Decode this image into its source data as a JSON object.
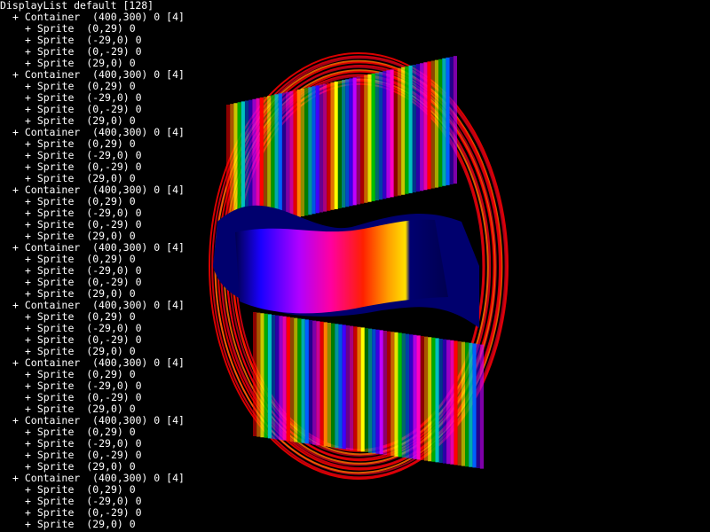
{
  "display_list": {
    "header": "DisplayList default [128]",
    "entries": [
      {
        "kind": "Container",
        "pos": "(400,300)",
        "rot": "0",
        "count": "[4]",
        "children": [
          {
            "kind": "Sprite",
            "pos": "(0,29)",
            "rot": "0"
          },
          {
            "kind": "Sprite",
            "pos": "(-29,0)",
            "rot": "0"
          },
          {
            "kind": "Sprite",
            "pos": "(0,-29)",
            "rot": "0"
          },
          {
            "kind": "Sprite",
            "pos": "(29,0)",
            "rot": "0"
          }
        ]
      },
      {
        "kind": "Container",
        "pos": "(400,300)",
        "rot": "0",
        "count": "[4]",
        "children": [
          {
            "kind": "Sprite",
            "pos": "(0,29)",
            "rot": "0"
          },
          {
            "kind": "Sprite",
            "pos": "(-29,0)",
            "rot": "0"
          },
          {
            "kind": "Sprite",
            "pos": "(0,-29)",
            "rot": "0"
          },
          {
            "kind": "Sprite",
            "pos": "(29,0)",
            "rot": "0"
          }
        ]
      },
      {
        "kind": "Container",
        "pos": "(400,300)",
        "rot": "0",
        "count": "[4]",
        "children": [
          {
            "kind": "Sprite",
            "pos": "(0,29)",
            "rot": "0"
          },
          {
            "kind": "Sprite",
            "pos": "(-29,0)",
            "rot": "0"
          },
          {
            "kind": "Sprite",
            "pos": "(0,-29)",
            "rot": "0"
          },
          {
            "kind": "Sprite",
            "pos": "(29,0)",
            "rot": "0"
          }
        ]
      },
      {
        "kind": "Container",
        "pos": "(400,300)",
        "rot": "0",
        "count": "[4]",
        "children": [
          {
            "kind": "Sprite",
            "pos": "(0,29)",
            "rot": "0"
          },
          {
            "kind": "Sprite",
            "pos": "(-29,0)",
            "rot": "0"
          },
          {
            "kind": "Sprite",
            "pos": "(0,-29)",
            "rot": "0"
          },
          {
            "kind": "Sprite",
            "pos": "(29,0)",
            "rot": "0"
          }
        ]
      },
      {
        "kind": "Container",
        "pos": "(400,300)",
        "rot": "0",
        "count": "[4]",
        "children": [
          {
            "kind": "Sprite",
            "pos": "(0,29)",
            "rot": "0"
          },
          {
            "kind": "Sprite",
            "pos": "(-29,0)",
            "rot": "0"
          },
          {
            "kind": "Sprite",
            "pos": "(0,-29)",
            "rot": "0"
          },
          {
            "kind": "Sprite",
            "pos": "(29,0)",
            "rot": "0"
          }
        ]
      },
      {
        "kind": "Container",
        "pos": "(400,300)",
        "rot": "0",
        "count": "[4]",
        "children": [
          {
            "kind": "Sprite",
            "pos": "(0,29)",
            "rot": "0"
          },
          {
            "kind": "Sprite",
            "pos": "(-29,0)",
            "rot": "0"
          },
          {
            "kind": "Sprite",
            "pos": "(0,-29)",
            "rot": "0"
          },
          {
            "kind": "Sprite",
            "pos": "(29,0)",
            "rot": "0"
          }
        ]
      },
      {
        "kind": "Container",
        "pos": "(400,300)",
        "rot": "0",
        "count": "[4]",
        "children": [
          {
            "kind": "Sprite",
            "pos": "(0,29)",
            "rot": "0"
          },
          {
            "kind": "Sprite",
            "pos": "(-29,0)",
            "rot": "0"
          },
          {
            "kind": "Sprite",
            "pos": "(0,-29)",
            "rot": "0"
          },
          {
            "kind": "Sprite",
            "pos": "(29,0)",
            "rot": "0"
          }
        ]
      },
      {
        "kind": "Container",
        "pos": "(400,300)",
        "rot": "0",
        "count": "[4]",
        "children": [
          {
            "kind": "Sprite",
            "pos": "(0,29)",
            "rot": "0"
          },
          {
            "kind": "Sprite",
            "pos": "(-29,0)",
            "rot": "0"
          },
          {
            "kind": "Sprite",
            "pos": "(0,-29)",
            "rot": "0"
          },
          {
            "kind": "Sprite",
            "pos": "(29,0)",
            "rot": "0"
          }
        ]
      },
      {
        "kind": "Container",
        "pos": "(400,300)",
        "rot": "0",
        "count": "[4]",
        "children": [
          {
            "kind": "Sprite",
            "pos": "(0,29)",
            "rot": "0"
          },
          {
            "kind": "Sprite",
            "pos": "(-29,0)",
            "rot": "0"
          },
          {
            "kind": "Sprite",
            "pos": "(0,-29)",
            "rot": "0"
          },
          {
            "kind": "Sprite",
            "pos": "(29,0)",
            "rot": "0"
          }
        ]
      }
    ]
  },
  "scene": {
    "background": "#000000",
    "ring_colors": [
      "#ff0000",
      "#e80010",
      "#c0001a",
      "#ff6a00"
    ],
    "stripe_palette": [
      "#ff0000",
      "#ff8000",
      "#ffff00",
      "#00c000",
      "#00c0c0",
      "#0060ff",
      "#4000ff",
      "#c000ff",
      "#ff00c0"
    ],
    "band_color": "#00006e"
  }
}
